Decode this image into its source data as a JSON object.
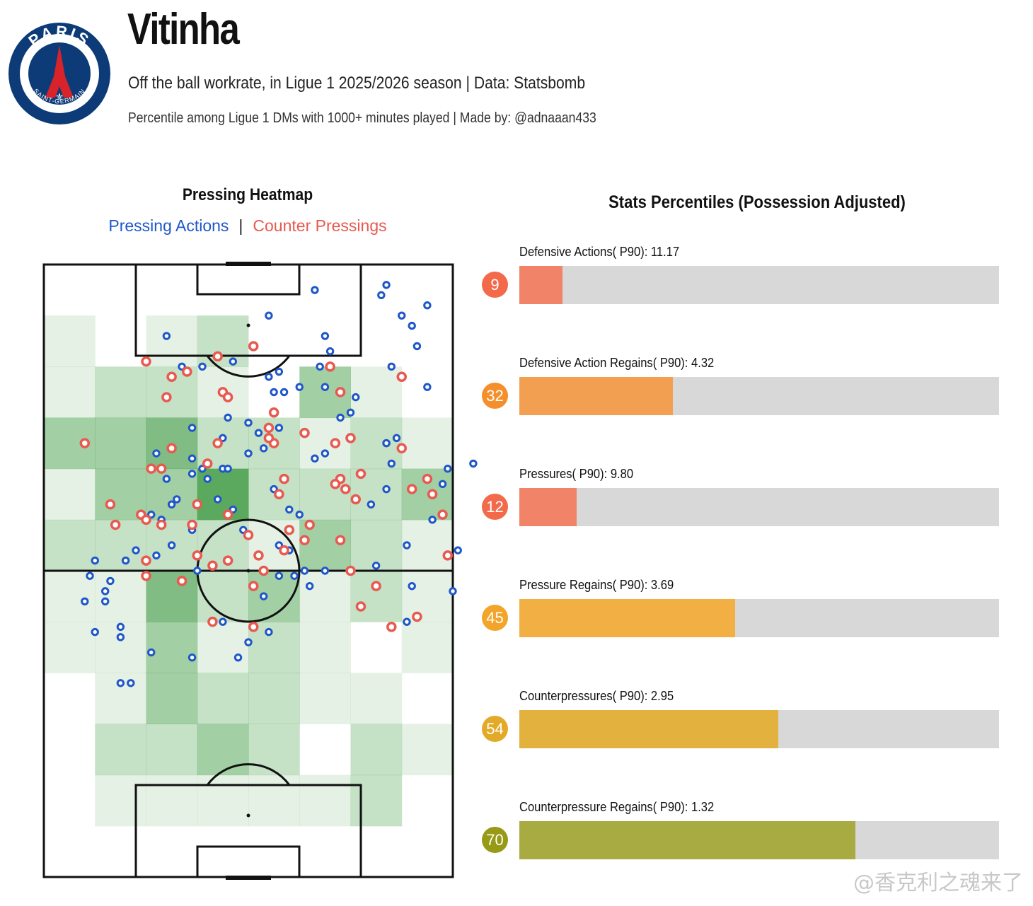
{
  "header": {
    "player_name": "Vitinha",
    "subtitle_line1": "Off the ball workrate, in Ligue 1 2025/2026 season | Data: Statsbomb",
    "subtitle_line2": "Percentile among Ligue 1 DMs with 1000+ minutes played | Made by: @adnaaan433",
    "logo": {
      "top_text": "PARIS",
      "bottom_text": "SAINT-GERMAIN",
      "primary_color": "#0d3b78",
      "accent_color": "#d8232a"
    }
  },
  "watermark": "@香克利之魂来了",
  "chart_data": [
    {
      "type": "heatmap",
      "title": "Pressing Heatmap",
      "legend": [
        {
          "name": "Pressing Actions",
          "color": "#1f57c9"
        },
        {
          "name": "Counter Pressings",
          "color": "#e8594f"
        }
      ],
      "legend_separator": "|",
      "pitch": {
        "length": 120,
        "width": 80,
        "orientation": "vertical",
        "attack_direction": "up"
      },
      "bins": {
        "cols": 8,
        "rows": 12
      },
      "heat_levels": [
        [
          0,
          0,
          0,
          0,
          0,
          0,
          0,
          0
        ],
        [
          1,
          0,
          1,
          2,
          0,
          0,
          0,
          0
        ],
        [
          1,
          2,
          2,
          1,
          0,
          3,
          1,
          0
        ],
        [
          3,
          3,
          4,
          2,
          2,
          1,
          2,
          1
        ],
        [
          1,
          3,
          3,
          5,
          2,
          2,
          2,
          3
        ],
        [
          2,
          2,
          2,
          2,
          1,
          3,
          2,
          1
        ],
        [
          1,
          1,
          4,
          2,
          3,
          1,
          2,
          1
        ],
        [
          1,
          1,
          3,
          1,
          2,
          1,
          0,
          1
        ],
        [
          0,
          1,
          3,
          2,
          2,
          1,
          1,
          0
        ],
        [
          0,
          2,
          2,
          3,
          2,
          0,
          2,
          1
        ],
        [
          0,
          1,
          1,
          1,
          1,
          1,
          2,
          0
        ],
        [
          0,
          0,
          0,
          0,
          0,
          0,
          0,
          0
        ]
      ],
      "heat_color": "#3e9a43",
      "pressing_actions": [
        [
          80,
          64
        ],
        [
          81,
          56
        ],
        [
          72,
          63
        ],
        [
          84,
          39
        ],
        [
          68,
          39
        ],
        [
          67,
          35
        ],
        [
          56,
          17
        ],
        [
          60,
          29
        ],
        [
          45,
          25
        ],
        [
          27,
          20
        ],
        [
          36,
          30
        ],
        [
          40,
          37
        ],
        [
          43,
          36
        ],
        [
          35,
          40
        ],
        [
          32,
          42
        ],
        [
          46,
          55
        ],
        [
          46,
          61
        ],
        [
          37,
          48
        ],
        [
          39,
          52
        ],
        [
          61,
          26
        ],
        [
          70,
          10
        ],
        [
          75,
          8
        ],
        [
          53,
          5
        ],
        [
          51,
          60
        ],
        [
          22,
          57
        ],
        [
          13,
          62
        ],
        [
          12,
          64
        ],
        [
          18,
          56
        ],
        [
          10,
          58
        ],
        [
          35,
          70
        ],
        [
          69,
          34
        ],
        [
          67,
          35
        ],
        [
          34,
          46
        ],
        [
          25,
          55
        ],
        [
          29,
          52
        ],
        [
          23,
          50
        ],
        [
          16,
          58
        ],
        [
          15,
          71
        ],
        [
          12,
          66
        ],
        [
          9,
          61
        ],
        [
          15,
          73
        ],
        [
          21,
          76
        ],
        [
          29,
          77
        ],
        [
          38,
          77
        ],
        [
          44,
          72
        ],
        [
          43,
          65
        ],
        [
          49,
          61
        ],
        [
          48,
          56
        ],
        [
          48,
          48
        ],
        [
          67,
          44
        ],
        [
          64,
          47
        ],
        [
          71,
          55
        ],
        [
          65,
          59
        ],
        [
          71,
          70
        ],
        [
          76,
          50
        ],
        [
          78,
          43
        ],
        [
          75,
          24
        ],
        [
          73,
          16
        ],
        [
          72,
          12
        ],
        [
          56,
          20
        ],
        [
          79,
          40
        ],
        [
          26,
          46
        ],
        [
          21,
          49
        ],
        [
          30,
          60
        ],
        [
          24,
          42
        ],
        [
          22,
          37
        ],
        [
          35,
          34
        ],
        [
          24,
          14
        ],
        [
          37,
          19
        ],
        [
          46,
          21
        ],
        [
          47,
          25
        ],
        [
          50,
          24
        ],
        [
          55,
          24
        ],
        [
          50,
          49
        ],
        [
          45,
          44
        ],
        [
          46,
          32
        ],
        [
          29,
          38
        ],
        [
          31,
          40
        ],
        [
          29,
          32
        ],
        [
          40,
          31
        ],
        [
          42,
          33
        ],
        [
          36,
          40
        ],
        [
          29,
          41
        ],
        [
          55,
          37
        ],
        [
          58,
          30
        ],
        [
          53,
          38
        ],
        [
          54,
          20
        ],
        [
          68,
          20
        ],
        [
          66,
          6
        ],
        [
          67,
          4
        ],
        [
          44,
          10
        ],
        [
          44,
          22
        ],
        [
          31,
          20
        ],
        [
          55,
          14
        ],
        [
          55,
          60
        ],
        [
          52,
          63
        ],
        [
          25,
          47
        ],
        [
          40,
          74
        ],
        [
          10,
          72
        ],
        [
          8,
          66
        ],
        [
          15,
          82
        ],
        [
          17,
          82
        ]
      ],
      "counter_pressings": [
        [
          73,
          69
        ],
        [
          65,
          63
        ],
        [
          60,
          60
        ],
        [
          58,
          54
        ],
        [
          48,
          52
        ],
        [
          51,
          54
        ],
        [
          68,
          71
        ],
        [
          20,
          61
        ],
        [
          19,
          49
        ],
        [
          13,
          47
        ],
        [
          33,
          59
        ],
        [
          33,
          70
        ],
        [
          23,
          40
        ],
        [
          25,
          36
        ],
        [
          45,
          35
        ],
        [
          41,
          63
        ],
        [
          62,
          41
        ],
        [
          61,
          46
        ],
        [
          72,
          44
        ],
        [
          59,
          44
        ],
        [
          52,
          51
        ],
        [
          45,
          29
        ],
        [
          41,
          71
        ],
        [
          62,
          67
        ],
        [
          79,
          57
        ],
        [
          76,
          45
        ],
        [
          78,
          49
        ],
        [
          75,
          42
        ],
        [
          70,
          36
        ],
        [
          42,
          57
        ],
        [
          46,
          45
        ],
        [
          29,
          51
        ],
        [
          36,
          58
        ],
        [
          36,
          49
        ],
        [
          40,
          53
        ],
        [
          30,
          57
        ],
        [
          20,
          58
        ],
        [
          27,
          62
        ],
        [
          30,
          47
        ],
        [
          20,
          19
        ],
        [
          23,
          51
        ],
        [
          41,
          16
        ],
        [
          44,
          32
        ],
        [
          8,
          35
        ],
        [
          21,
          40
        ],
        [
          32,
          39
        ],
        [
          25,
          22
        ],
        [
          56,
          20
        ],
        [
          58,
          42
        ],
        [
          58,
          25
        ],
        [
          57,
          43
        ],
        [
          70,
          22
        ],
        [
          34,
          18
        ],
        [
          47,
          56
        ],
        [
          35,
          25
        ],
        [
          24,
          26
        ],
        [
          28,
          21
        ],
        [
          34,
          35
        ],
        [
          20,
          50
        ],
        [
          14,
          51
        ],
        [
          44,
          34
        ],
        [
          36,
          26
        ],
        [
          47,
          42
        ],
        [
          51,
          33
        ],
        [
          57,
          35
        ],
        [
          43,
          60
        ],
        [
          60,
          34
        ]
      ]
    },
    {
      "type": "bar",
      "title": "Stats Percentiles (Possession Adjusted)",
      "orientation": "horizontal",
      "xlim": [
        0,
        100
      ],
      "categories": [
        "Defensive Actions( P90): 11.17",
        "Defensive Action Regains( P90): 4.32",
        "Pressures( P90): 9.80",
        "Pressure Regains( P90): 3.69",
        "Counterpressures( P90): 2.95",
        "Counterpressure Regains( P90): 1.32"
      ],
      "values": [
        9,
        32,
        12,
        45,
        54,
        70
      ],
      "colors": [
        "#f08368",
        "#f29f52",
        "#f08368",
        "#f2b044",
        "#e3b13e",
        "#a8ab42"
      ],
      "badge_colors": [
        "#f26a4a",
        "#f58f2c",
        "#f26a4a",
        "#f2a52a",
        "#e2aa28",
        "#979a16"
      ],
      "track_color": "#d8d8d8"
    }
  ]
}
